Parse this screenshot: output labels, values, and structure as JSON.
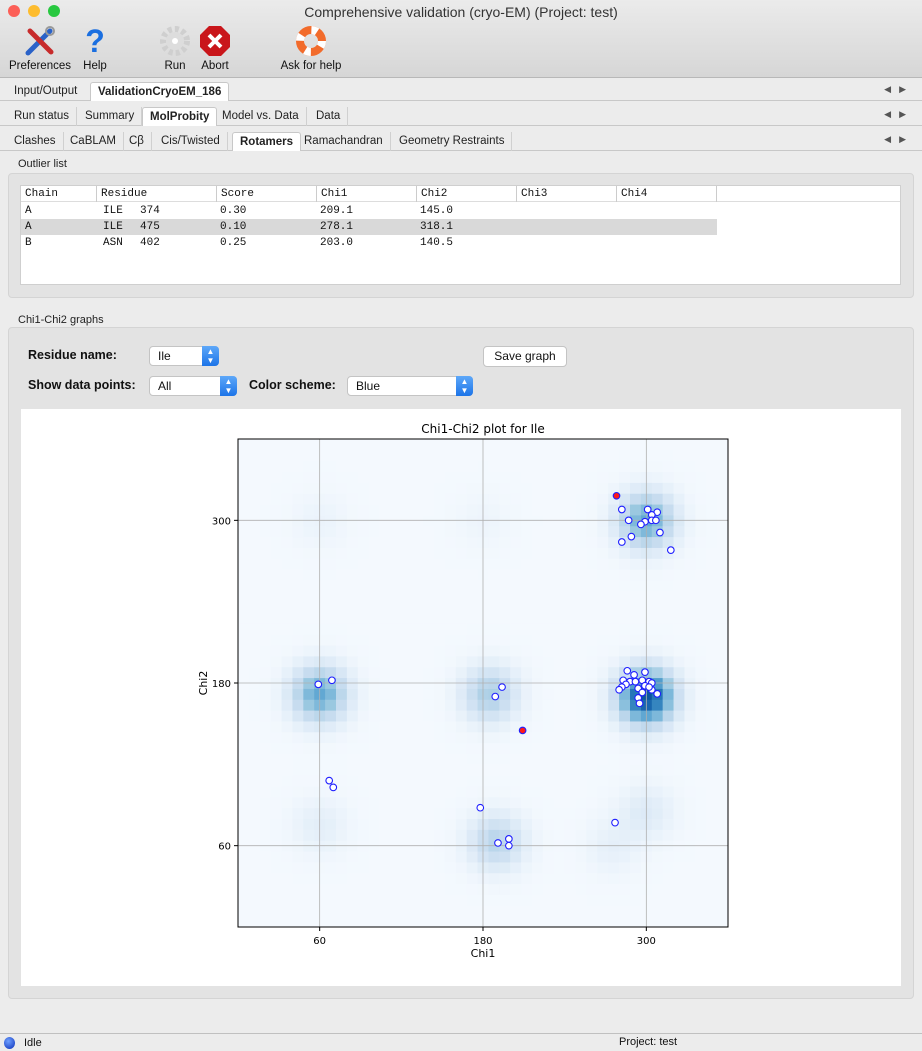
{
  "window": {
    "title": "Comprehensive validation (cryo-EM) (Project: test)"
  },
  "toolbar": {
    "items": [
      {
        "label": "Preferences",
        "icon": "wrench-screwdriver-icon"
      },
      {
        "label": "Help",
        "icon": "question-mark-icon"
      },
      {
        "label": "Run",
        "icon": "gear-icon"
      },
      {
        "label": "Abort",
        "icon": "stop-x-icon"
      },
      {
        "label": "Ask for help",
        "icon": "lifebuoy-icon"
      }
    ]
  },
  "tabs": {
    "main": [
      {
        "label": "Input/Output"
      },
      {
        "label": "ValidationCryoEM_186",
        "selected": true
      }
    ],
    "sub": [
      {
        "label": "Run status"
      },
      {
        "label": "Summary"
      },
      {
        "label": "MolProbity",
        "selected": true
      },
      {
        "label": "Model vs. Data"
      },
      {
        "label": "Data"
      }
    ],
    "molprobity": [
      {
        "label": "Clashes"
      },
      {
        "label": "CaBLAM"
      },
      {
        "label": "Cβ"
      },
      {
        "label": "Cis/Twisted"
      },
      {
        "label": "Rotamers",
        "selected": true
      },
      {
        "label": "Ramachandran"
      },
      {
        "label": "Geometry Restraints"
      }
    ]
  },
  "outliers": {
    "title": "Outlier list",
    "columns": [
      "Chain",
      "Residue",
      "Score",
      "Chi1",
      "Chi2",
      "Chi3",
      "Chi4"
    ],
    "rows": [
      {
        "chain": "A",
        "resname": "ILE",
        "resnum": "374",
        "score": "0.30",
        "chi1": "209.1",
        "chi2": "145.0",
        "chi3": "",
        "chi4": ""
      },
      {
        "chain": "A",
        "resname": "ILE",
        "resnum": "475",
        "score": "0.10",
        "chi1": "278.1",
        "chi2": "318.1",
        "chi3": "",
        "chi4": "",
        "selected": true
      },
      {
        "chain": "B",
        "resname": "ASN",
        "resnum": "402",
        "score": "0.25",
        "chi1": "203.0",
        "chi2": "140.5",
        "chi3": "",
        "chi4": ""
      }
    ]
  },
  "graphs": {
    "title": "Chi1-Chi2 graphs",
    "residue_label": "Residue name:",
    "residue_value": "Ile",
    "points_label": "Show data points:",
    "points_value": "All",
    "scheme_label": "Color scheme:",
    "scheme_value": "Blue",
    "save_label": "Save graph"
  },
  "chart_data": {
    "type": "scatter",
    "title": "Chi1-Chi2 plot for Ile",
    "xlabel": "Chi1",
    "ylabel": "Chi2",
    "xlim": [
      0,
      360
    ],
    "ylim": [
      0,
      360
    ],
    "xticks": [
      60,
      180,
      300
    ],
    "yticks": [
      60,
      180,
      300
    ],
    "grid": true,
    "colors": {
      "point_edge": "#1f1fff",
      "point_fill": "#ffffff",
      "outlier_fill": "#ff1a1a",
      "colormap": "Blues"
    },
    "density_peaks": [
      {
        "chi1": 300,
        "chi2": 170,
        "rel": 1.0
      },
      {
        "chi1": 300,
        "chi2": 300,
        "rel": 0.6
      },
      {
        "chi1": 60,
        "chi2": 172,
        "rel": 0.6
      },
      {
        "chi1": 185,
        "chi2": 172,
        "rel": 0.38
      },
      {
        "chi1": 190,
        "chi2": 63,
        "rel": 0.33
      },
      {
        "chi1": 300,
        "chi2": 85,
        "rel": 0.13
      },
      {
        "chi1": 60,
        "chi2": 75,
        "rel": 0.1
      },
      {
        "chi1": 275,
        "chi2": 60,
        "rel": 0.08
      },
      {
        "chi1": 60,
        "chi2": 300,
        "rel": 0.05
      },
      {
        "chi1": 180,
        "chi2": 300,
        "rel": 0.04
      }
    ],
    "outliers": [
      {
        "chi1": 278.1,
        "chi2": 318.1
      },
      {
        "chi1": 209.1,
        "chi2": 145.0
      }
    ],
    "points": [
      [
        282,
        308
      ],
      [
        301,
        308
      ],
      [
        308,
        306
      ],
      [
        304,
        304
      ],
      [
        287,
        300
      ],
      [
        299,
        299
      ],
      [
        296,
        297
      ],
      [
        304,
        300
      ],
      [
        307,
        300
      ],
      [
        310,
        291
      ],
      [
        289,
        288
      ],
      [
        282,
        284
      ],
      [
        318,
        278
      ],
      [
        286,
        189
      ],
      [
        291,
        186
      ],
      [
        299,
        188
      ],
      [
        283,
        182
      ],
      [
        288,
        181
      ],
      [
        292,
        181
      ],
      [
        297,
        182
      ],
      [
        302,
        181
      ],
      [
        304,
        180
      ],
      [
        285,
        179
      ],
      [
        282,
        177
      ],
      [
        280,
        175
      ],
      [
        294,
        176
      ],
      [
        299,
        178
      ],
      [
        304,
        175
      ],
      [
        308,
        172
      ],
      [
        297,
        173
      ],
      [
        294,
        169
      ],
      [
        295,
        165
      ],
      [
        302,
        177
      ],
      [
        59,
        179
      ],
      [
        69,
        182
      ],
      [
        67,
        108
      ],
      [
        70,
        103
      ],
      [
        189,
        170
      ],
      [
        194,
        177
      ],
      [
        178,
        88
      ],
      [
        191,
        62
      ],
      [
        199,
        65
      ],
      [
        199,
        60
      ],
      [
        277,
        77
      ]
    ]
  },
  "status": {
    "state": "Idle",
    "project": "Project: test"
  }
}
